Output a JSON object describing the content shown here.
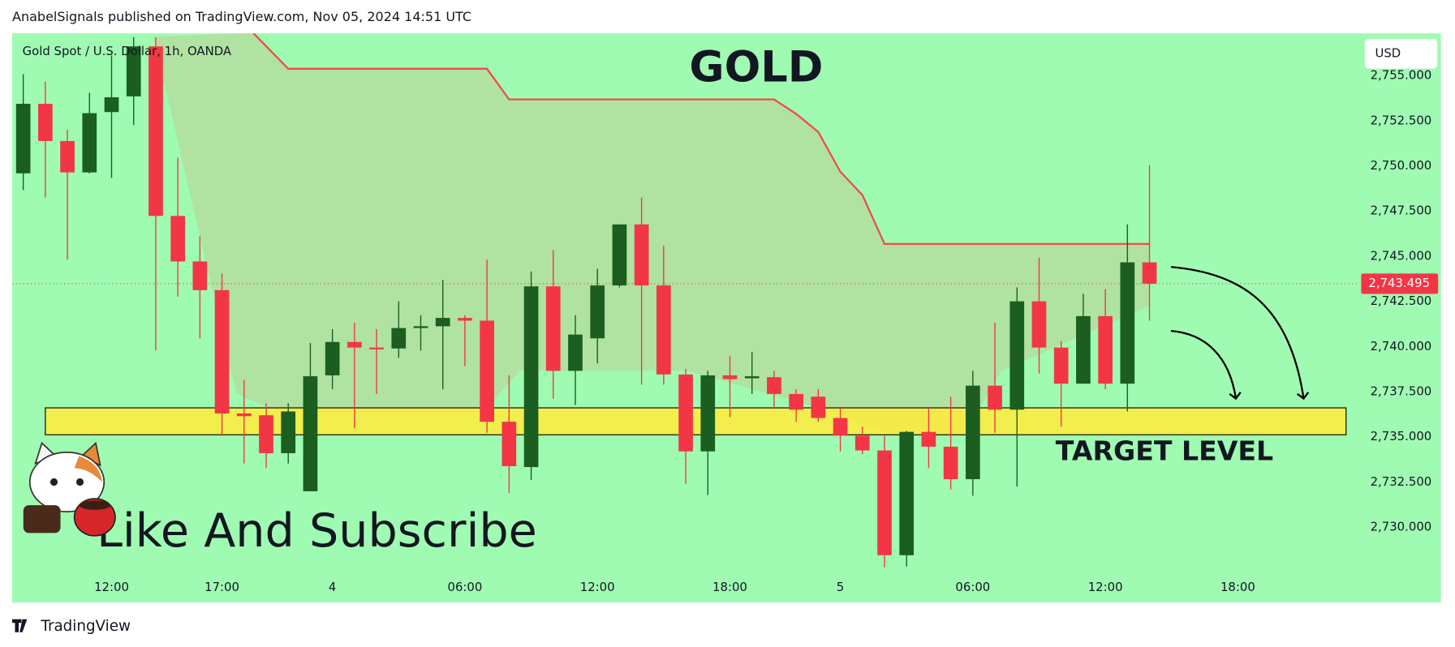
{
  "chart_data": {
    "type": "candlestick",
    "header": "AnabelSignals published on TradingView.com, Nov 05, 2024 14:51 UTC",
    "symbol": "Gold Spot / U.S. Dollar, 1h, OANDA",
    "currency": "USD",
    "brand": "TradingView",
    "title": "GOLD",
    "target_label": "TARGET LEVEL",
    "cta": "Like And Subscribe",
    "up_color": "#1b5e20",
    "down_color": "#f23645",
    "background": "#9ffbb2",
    "xlim": [
      -0.5,
      60.5
    ],
    "ylim": [
      2725.84,
      2757.36
    ],
    "xticks": [
      {
        "value": 4,
        "label": "12:00"
      },
      {
        "value": 9,
        "label": "17:00"
      },
      {
        "value": 14,
        "label": "4"
      },
      {
        "value": 20,
        "label": "06:00"
      },
      {
        "value": 26,
        "label": "12:00"
      },
      {
        "value": 32,
        "label": "18:00"
      },
      {
        "value": 37,
        "label": "5"
      },
      {
        "value": 43,
        "label": "06:00"
      },
      {
        "value": 49,
        "label": "12:00"
      },
      {
        "value": 55,
        "label": "18:00"
      }
    ],
    "yticks": [
      {
        "value": 2730,
        "label": "2,730.000"
      },
      {
        "value": 2732.5,
        "label": "2,732.500"
      },
      {
        "value": 2735,
        "label": "2,735.000"
      },
      {
        "value": 2737.5,
        "label": "2,737.500"
      },
      {
        "value": 2740,
        "label": "2,740.000"
      },
      {
        "value": 2742.5,
        "label": "2,742.500"
      },
      {
        "value": 2745,
        "label": "2,745.000"
      },
      {
        "value": 2747.5,
        "label": "2,747.500"
      },
      {
        "value": 2750,
        "label": "2,750.000"
      },
      {
        "value": 2752.5,
        "label": "2,752.500"
      },
      {
        "value": 2755,
        "label": "2,755.000"
      }
    ],
    "last_price": {
      "value": 2743.495,
      "label": "2,743.495"
    },
    "open": [
      2749.61,
      2753.46,
      2751.4,
      2749.66,
      2753.0,
      2753.87,
      2756.64,
      2747.25,
      2744.73,
      2743.14,
      2736.31,
      2736.21,
      2734.11,
      2732.0,
      2738.42,
      2740.27,
      2739.96,
      2739.91,
      2741.04,
      2741.14,
      2741.6,
      2741.45,
      2735.85,
      2733.34,
      2743.35,
      2738.67,
      2740.47,
      2743.4,
      2746.78,
      2743.4,
      2738.47,
      2734.21,
      2738.42,
      2738.26,
      2738.32,
      2737.39,
      2737.24,
      2736.06,
      2735.08,
      2734.26,
      2728.46,
      2735.29,
      2734.47,
      2732.67,
      2737.85,
      2736.52,
      2742.52,
      2739.96,
      2737.96,
      2741.7,
      2737.96,
      2744.68
    ],
    "high": [
      2755.1,
      2754.69,
      2752.02,
      2754.07,
      2756.13,
      2757.15,
      2757.15,
      2750.48,
      2746.12,
      2744.06,
      2738.16,
      2736.88,
      2736.88,
      2740.21,
      2740.98,
      2741.34,
      2740.98,
      2742.52,
      2741.75,
      2743.71,
      2741.75,
      2744.83,
      2738.42,
      2744.17,
      2745.35,
      2741.75,
      2744.32,
      2746.78,
      2748.27,
      2745.6,
      2738.78,
      2738.67,
      2739.5,
      2739.7,
      2738.67,
      2737.65,
      2737.65,
      2736.62,
      2735.59,
      2735.08,
      2735.34,
      2736.62,
      2737.24,
      2738.67,
      2741.34,
      2743.29,
      2744.94,
      2740.32,
      2742.94,
      2743.19,
      2746.78,
      2750.07
    ],
    "low": [
      2748.68,
      2748.27,
      2744.83,
      2749.61,
      2749.35,
      2752.28,
      2739.8,
      2742.78,
      2740.47,
      2735.08,
      2733.54,
      2733.29,
      2733.54,
      2732.0,
      2737.65,
      2735.49,
      2737.39,
      2739.39,
      2739.8,
      2737.65,
      2738.93,
      2735.24,
      2731.9,
      2732.62,
      2737.13,
      2736.78,
      2739.09,
      2743.29,
      2737.9,
      2737.9,
      2732.41,
      2731.8,
      2736.11,
      2737.39,
      2736.62,
      2735.85,
      2735.85,
      2734.21,
      2734.06,
      2727.79,
      2727.84,
      2733.29,
      2732.1,
      2731.75,
      2735.24,
      2732.26,
      2738.52,
      2735.59,
      2737.96,
      2737.65,
      2736.42,
      2741.45
    ],
    "close": [
      2753.46,
      2751.4,
      2749.66,
      2752.94,
      2753.82,
      2756.64,
      2747.25,
      2744.73,
      2743.14,
      2736.31,
      2736.16,
      2734.11,
      2736.42,
      2738.37,
      2740.27,
      2739.96,
      2739.86,
      2741.04,
      2741.14,
      2741.6,
      2741.45,
      2735.85,
      2733.39,
      2743.35,
      2738.67,
      2740.68,
      2743.4,
      2746.78,
      2743.4,
      2738.47,
      2734.21,
      2738.42,
      2738.21,
      2738.37,
      2737.39,
      2736.52,
      2736.06,
      2735.08,
      2734.26,
      2728.46,
      2735.29,
      2734.47,
      2732.67,
      2737.85,
      2736.52,
      2742.52,
      2739.96,
      2737.96,
      2741.7,
      2737.96,
      2744.68,
      2743.495
    ],
    "resistance": {
      "color": "#f44a4a",
      "x": [
        10.4,
        12,
        21,
        22,
        34,
        35,
        36,
        37,
        38,
        39,
        51
      ],
      "values": [
        2757.4,
        2755.4,
        2755.4,
        2753.7,
        2753.7,
        2752.9,
        2751.9,
        2749.7,
        2748.4,
        2745.7,
        2745.7
      ]
    },
    "cloud_lower": {
      "color": "#b3dd9f",
      "x": [
        5.9,
        9.66,
        11.55,
        20.8,
        22.5,
        30.0,
        36.8,
        39.3,
        42.6,
        44.3,
        51
      ],
      "values": [
        2757.16,
        2737.39,
        2736.37,
        2736.37,
        2738.68,
        2738.68,
        2736.37,
        2735.08,
        2735.08,
        2738.68,
        2742.27
      ]
    },
    "target_zone": {
      "color": "#ffeb3b",
      "x": [
        1.0,
        59.9
      ],
      "values": [
        2736.62,
        2735.13
      ]
    }
  }
}
